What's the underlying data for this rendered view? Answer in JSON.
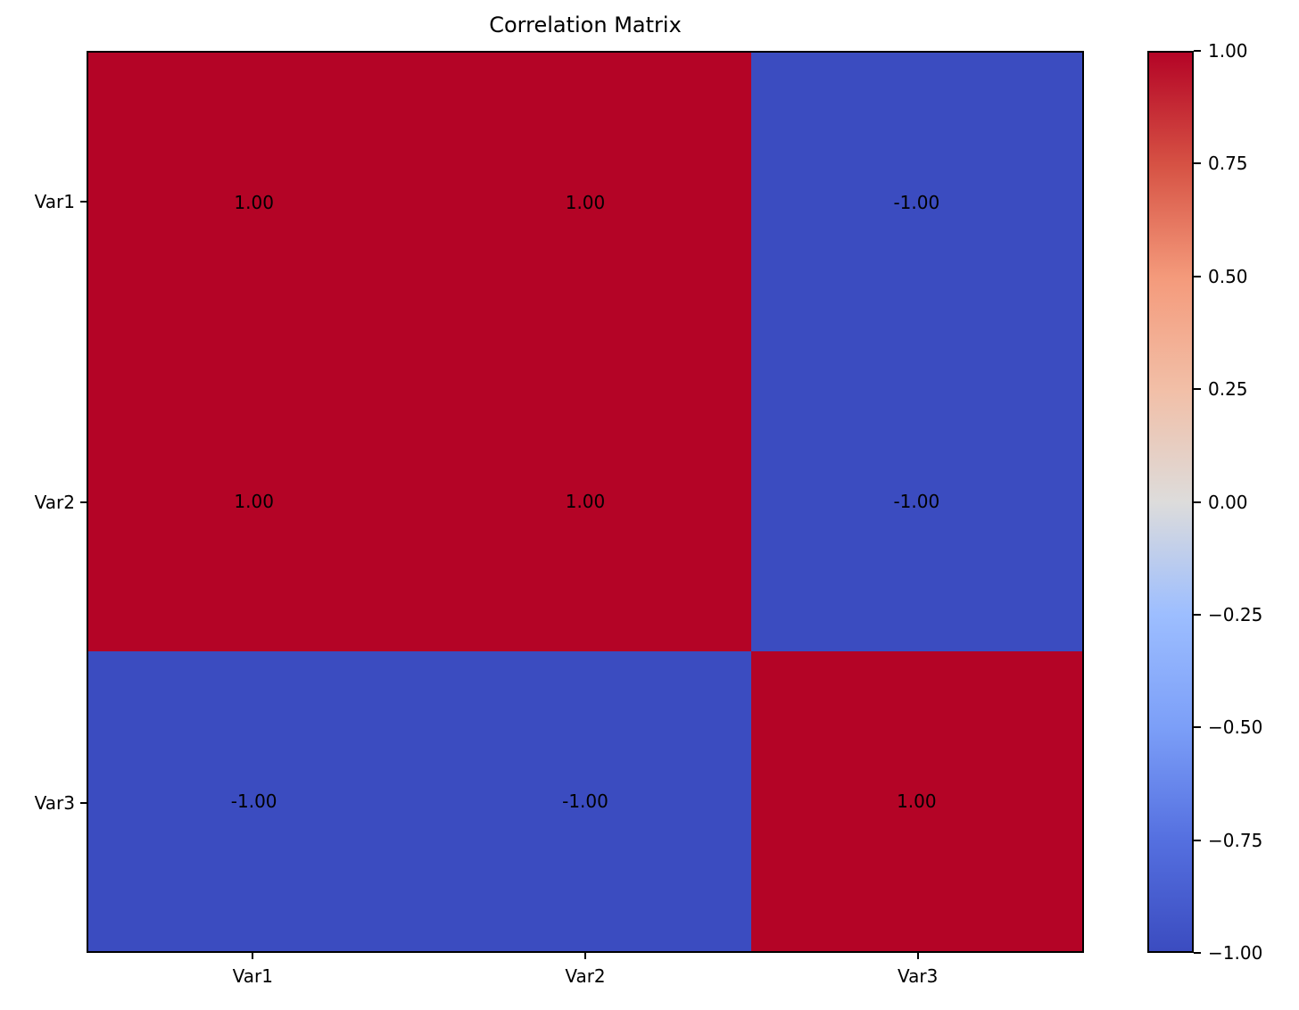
{
  "figure": {
    "background": "#ffffff"
  },
  "chart_data": {
    "type": "heatmap",
    "title": "Correlation Matrix",
    "x_labels": [
      "Var1",
      "Var2",
      "Var3"
    ],
    "y_labels": [
      "Var1",
      "Var2",
      "Var3"
    ],
    "values": [
      [
        1.0,
        1.0,
        -1.0
      ],
      [
        1.0,
        1.0,
        -1.0
      ],
      [
        -1.0,
        -1.0,
        1.0
      ]
    ],
    "cell_texts": [
      [
        "1.00",
        "1.00",
        "-1.00"
      ],
      [
        "1.00",
        "1.00",
        "-1.00"
      ],
      [
        "-1.00",
        "-1.00",
        "1.00"
      ]
    ],
    "vmin": -1.0,
    "vmax": 1.0,
    "colormap": "coolwarm",
    "grid": false,
    "legend": false,
    "colorbar": {
      "position": "right",
      "tick_labels": [
        "1.00",
        "0.75",
        "0.50",
        "0.25",
        "0.00",
        "−0.25",
        "−0.50",
        "−0.75",
        "−1.00"
      ],
      "tick_values": [
        1.0,
        0.75,
        0.5,
        0.25,
        0.0,
        -0.25,
        -0.5,
        -0.75,
        -1.0
      ]
    },
    "colors": {
      "positive_cell": "#b40426",
      "negative_cell": "#3b4cc0",
      "midpoint": "#dddcdb",
      "text": "#000000"
    }
  }
}
